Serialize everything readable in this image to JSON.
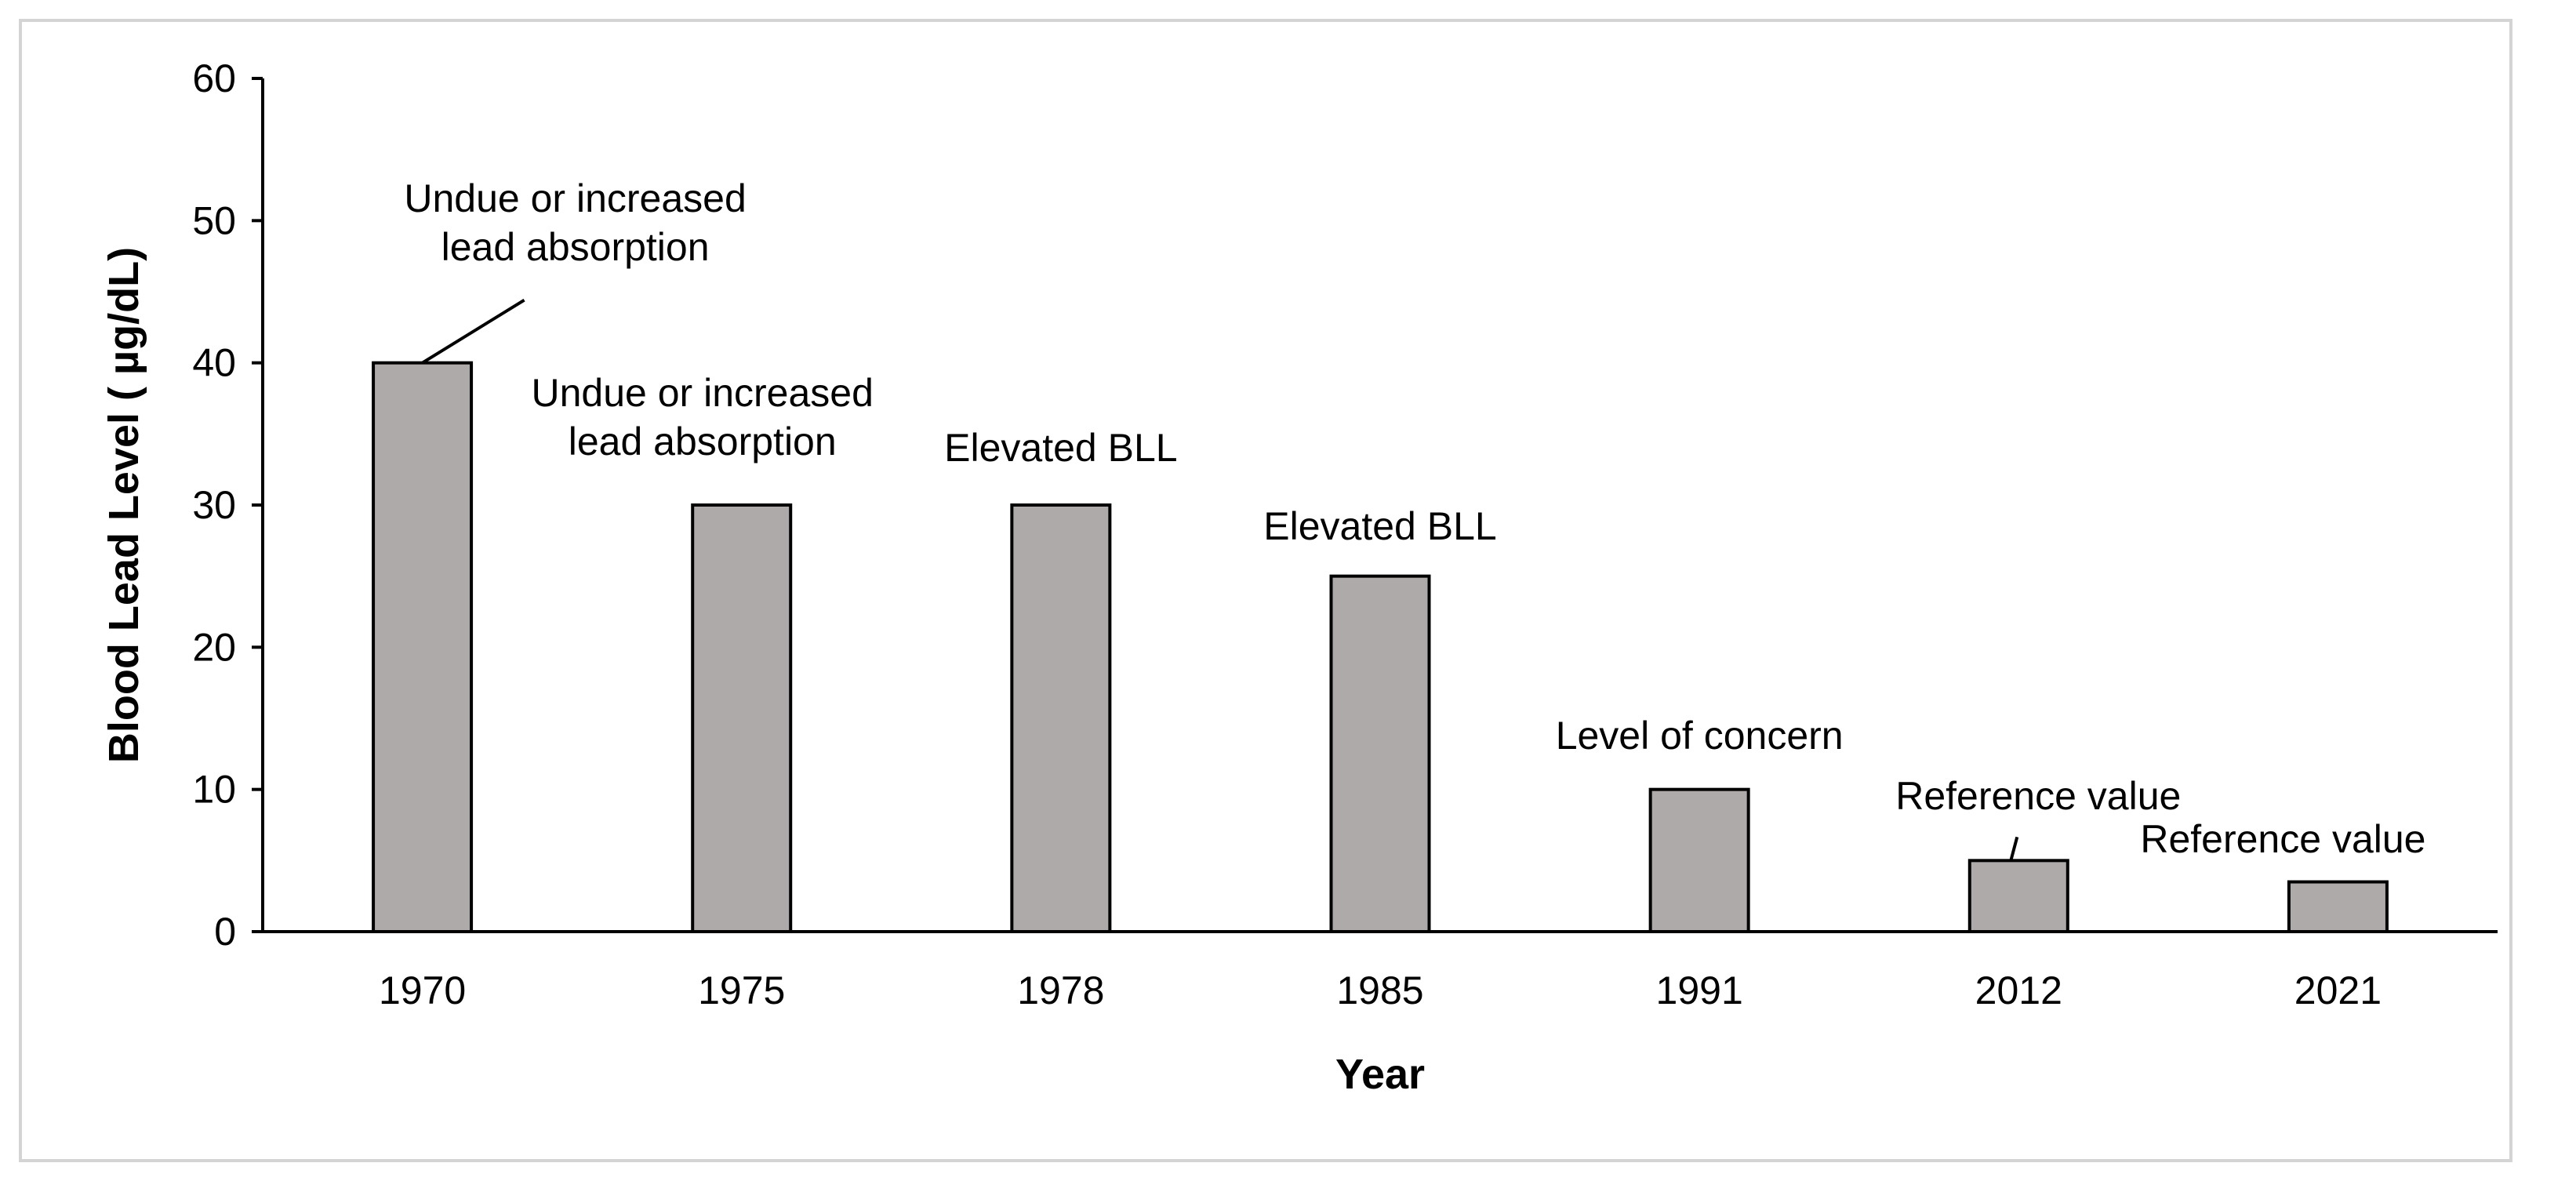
{
  "chart_data": {
    "type": "bar",
    "title": "",
    "xlabel": "Year",
    "ylabel": "Blood Lead Level ( µg/dL)",
    "ylim": [
      0,
      60
    ],
    "yticks": [
      0,
      10,
      20,
      30,
      40,
      50,
      60
    ],
    "grid": false,
    "categories": [
      "1970",
      "1975",
      "1978",
      "1985",
      "1991",
      "2012",
      "2021"
    ],
    "values": [
      40,
      30,
      30,
      25,
      10,
      5,
      3.5
    ],
    "annotations": [
      [
        "Undue or increased",
        "lead absorption"
      ],
      [
        "Undue or increased",
        "lead absorption"
      ],
      [
        "Elevated BLL"
      ],
      [
        "Elevated BLL"
      ],
      [
        "Level of concern"
      ],
      [
        "Reference value"
      ],
      [
        "Reference value"
      ]
    ],
    "bar_color": "#afaaaa",
    "bar_edge_color": "#000000"
  }
}
